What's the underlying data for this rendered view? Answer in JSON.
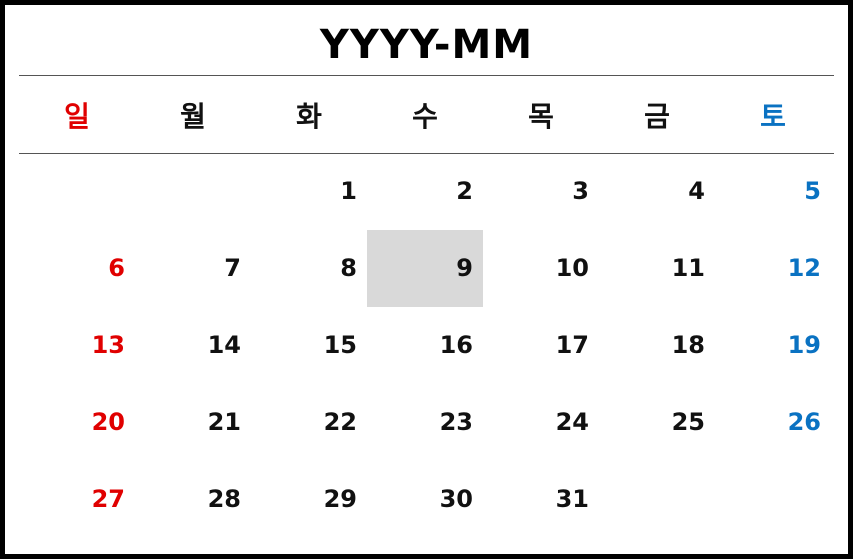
{
  "calendar": {
    "title": "YYYY-MM",
    "weekdays": [
      "일",
      "월",
      "화",
      "수",
      "목",
      "금",
      "토"
    ],
    "leading_blank_days": 2,
    "days_in_month": 31,
    "selected_day": 9,
    "colors": {
      "sunday": "#e00000",
      "saturday": "#0a72c2",
      "selected_background": "#d9d9d9"
    }
  }
}
